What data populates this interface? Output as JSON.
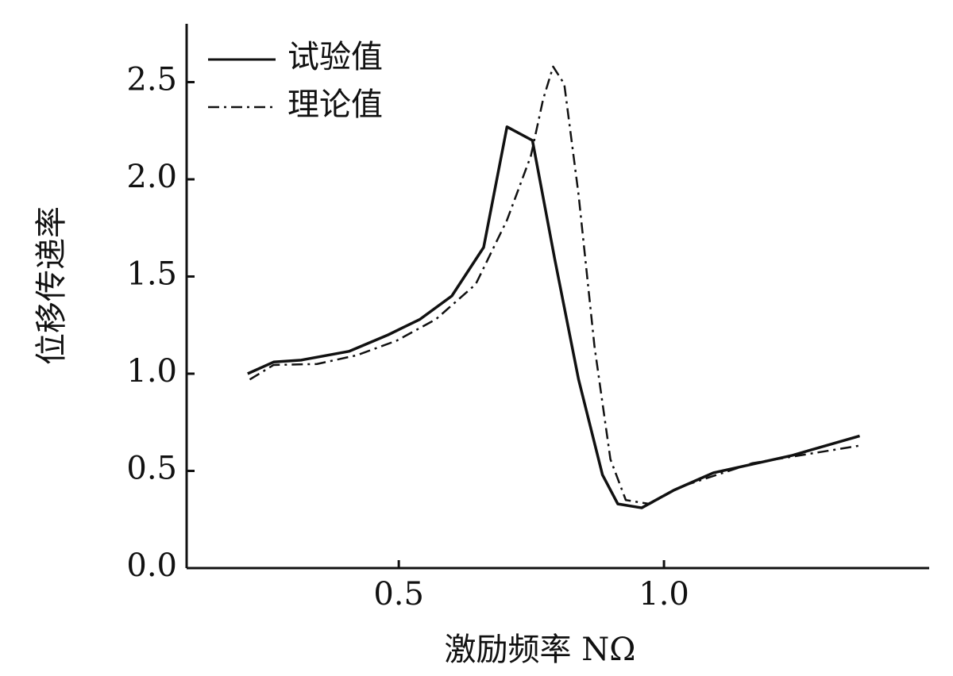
{
  "chart_data": {
    "type": "line",
    "xlabel": "激励频率 NΩ",
    "ylabel": "位移传递率",
    "xlim": [
      0.1,
      1.5
    ],
    "ylim": [
      0,
      2.8
    ],
    "xticks": [
      0.5,
      {
        "value": 1.0,
        "label": "1.0"
      }
    ],
    "yticks": [
      {
        "value": 0.0,
        "label": "0.0"
      },
      0.5,
      {
        "value": 1.0,
        "label": "1.0"
      },
      1.5,
      {
        "value": 2.0,
        "label": "2.0"
      },
      2.5
    ],
    "legend": "upper left",
    "series": [
      {
        "name": "试验值",
        "color": "#111111",
        "style": "solid",
        "x": [
          0.215,
          0.264,
          0.316,
          0.406,
          0.48,
          0.54,
          0.6,
          0.66,
          0.704,
          0.752,
          0.794,
          0.839,
          0.884,
          0.913,
          0.958,
          1.018,
          1.093,
          1.242,
          1.369
        ],
        "values": [
          1.0,
          1.06,
          1.07,
          1.115,
          1.2,
          1.28,
          1.4,
          1.65,
          2.27,
          2.2,
          1.59,
          0.97,
          0.48,
          0.33,
          0.31,
          0.4,
          0.49,
          0.58,
          0.68
        ]
      },
      {
        "name": "理论值",
        "color": "#111111",
        "style": "dashdot",
        "x": [
          0.219,
          0.264,
          0.346,
          0.421,
          0.496,
          0.57,
          0.645,
          0.704,
          0.749,
          0.772,
          0.791,
          0.812,
          0.839,
          0.869,
          0.899,
          0.928,
          0.973,
          1.033,
          1.167,
          1.369
        ],
        "values": [
          0.97,
          1.045,
          1.05,
          1.095,
          1.17,
          1.28,
          1.46,
          1.79,
          2.12,
          2.41,
          2.58,
          2.49,
          1.92,
          1.14,
          0.56,
          0.35,
          0.33,
          0.42,
          0.54,
          0.63
        ]
      }
    ]
  }
}
